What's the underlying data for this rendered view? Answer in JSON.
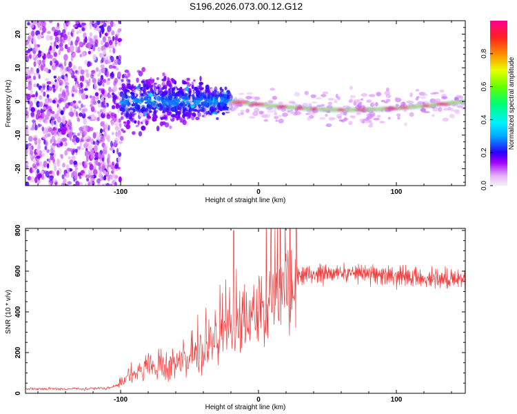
{
  "figure": {
    "title": "S196.2026.073.00.12.G12"
  },
  "chart_data": [
    {
      "type": "heatmap",
      "xlabel": "Height of straight line (km)",
      "ylabel": "Frequency (Hz)",
      "xlim": [
        -169,
        150
      ],
      "ylim": [
        -25,
        24
      ],
      "xticks": [
        -100,
        0,
        100
      ],
      "xtick_labels": [
        "-100",
        "0",
        "100"
      ],
      "yticks": [
        -20,
        -10,
        0,
        10,
        20
      ],
      "ytick_labels": [
        "-20",
        "-10",
        "0",
        "10",
        "20"
      ],
      "colorbar": {
        "label": "Normalized spectral amplitude",
        "range": [
          0,
          1
        ],
        "ticks": [
          0.0,
          0.2,
          0.4,
          0.6,
          0.8
        ],
        "tick_labels": [
          "0.0",
          "0.2",
          "0.4",
          "0.6",
          "0.8"
        ]
      },
      "regions": [
        {
          "name": "scattered noise",
          "x": [
            -169,
            -100
          ],
          "freq_spread_hz": 24,
          "amplitude": 0.15
        },
        {
          "name": "noisy transition",
          "x": [
            -100,
            -20
          ],
          "freq_spread_hz": 12,
          "amplitude": 0.3
        },
        {
          "name": "narrow signal line",
          "x": [
            -20,
            150
          ],
          "freq_center_hz": [
            0,
            -2.5
          ],
          "amplitude": 0.95
        }
      ]
    },
    {
      "type": "line",
      "xlabel": "Height of straight line (km)",
      "ylabel": "SNR (10 * v/v)",
      "xlim": [
        -169,
        150
      ],
      "ylim": [
        0,
        810
      ],
      "xticks": [
        -100,
        0,
        100
      ],
      "xtick_labels": [
        "-100",
        "0",
        "100"
      ],
      "yticks": [
        0,
        200,
        400,
        600,
        800
      ],
      "ytick_labels": [
        "0",
        "200",
        "400",
        "600",
        "800"
      ],
      "series": [
        {
          "name": "SNR",
          "color": "#f03a3a",
          "x": [
            -169,
            -150,
            -130,
            -110,
            -102,
            -95,
            -80,
            -60,
            -40,
            -30,
            -22,
            -18,
            -10,
            0,
            10,
            20,
            28,
            40,
            60,
            80,
            100,
            120,
            150
          ],
          "y": [
            22,
            22,
            22,
            24,
            40,
            90,
            115,
            145,
            205,
            260,
            320,
            270,
            360,
            420,
            470,
            530,
            570,
            590,
            595,
            590,
            575,
            565,
            560
          ],
          "peaks": [
            {
              "x": -18,
              "y": 800
            },
            {
              "x": -21,
              "y": 520
            },
            {
              "x": -16,
              "y": 610
            }
          ]
        }
      ]
    }
  ]
}
